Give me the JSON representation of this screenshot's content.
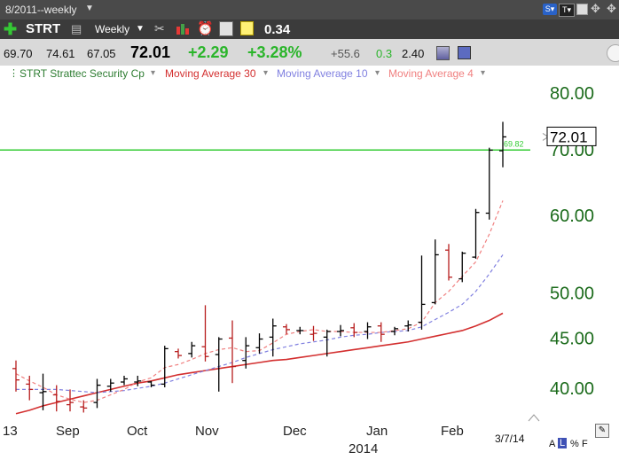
{
  "window": {
    "title": "8/2011--weekly"
  },
  "toolbar": {
    "symbol": "STRT",
    "period": "Weekly",
    "indicator_value": "0.34",
    "icons": [
      "add-symbol-icon",
      "printer-icon",
      "dropdown-arrow-icon",
      "tools-icon",
      "bar-chart-icon",
      "alarm-clock-icon",
      "calculator-icon",
      "note-icon"
    ],
    "right_icons": [
      "s-dropdown-icon",
      "t-dropdown-icon",
      "minimize-icon",
      "move-icon"
    ]
  },
  "quote": {
    "open": "69.70",
    "high": "74.61",
    "low": "67.05",
    "last": "72.01",
    "change": "+2.29",
    "change_pct": "+3.28%",
    "stat1": "+55.6",
    "stat2": "0.3",
    "stat3": "2.40"
  },
  "legend": [
    {
      "label": "STRT Strattec Security Cp",
      "color": "#2e7d32"
    },
    {
      "label": "Moving Average 30",
      "color": "#d32f2f"
    },
    {
      "label": "Moving Average 10",
      "color": "#8080e0"
    },
    {
      "label": "Moving Average 4",
      "color": "#f08080"
    }
  ],
  "footer": {
    "date": "3/7/14",
    "scale_buttons": [
      "A",
      "L",
      "%",
      "F"
    ]
  },
  "chart_data": {
    "type": "ohlc",
    "y_scale": "log",
    "ylim": [
      37.5,
      82
    ],
    "y_ticks": [
      "80.00",
      "70.00",
      "60.00",
      "50.00",
      "45.00",
      "40.00"
    ],
    "y_tick_values": [
      80,
      70,
      60,
      50,
      45,
      40
    ],
    "x_month_labels": [
      "13",
      "Sep",
      "Oct",
      "Nov",
      "Dec",
      "Jan",
      "Feb"
    ],
    "x_year_labels": [
      "2014"
    ],
    "last_price_label": "72.01",
    "last_price": 72.01,
    "horizontal_line": {
      "value": 69.82,
      "label": "69.82",
      "color": "#33cc33"
    },
    "bars": [
      {
        "o": 41.8,
        "h": 42.6,
        "l": 39.6,
        "c": 40.7,
        "up": false
      },
      {
        "o": 40.3,
        "h": 41.1,
        "l": 38.8,
        "c": 39.8,
        "up": false
      },
      {
        "o": 39.5,
        "h": 41.3,
        "l": 37.9,
        "c": 39.6,
        "up": true
      },
      {
        "o": 39.3,
        "h": 40.2,
        "l": 37.8,
        "c": 38.7,
        "up": false
      },
      {
        "o": 38.4,
        "h": 39.8,
        "l": 37.8,
        "c": 38.6,
        "up": false
      },
      {
        "o": 38.2,
        "h": 38.8,
        "l": 37.7,
        "c": 38.1,
        "up": false
      },
      {
        "o": 38.6,
        "h": 40.8,
        "l": 38.1,
        "c": 40.2,
        "up": true
      },
      {
        "o": 40.1,
        "h": 40.8,
        "l": 39.6,
        "c": 40.4,
        "up": true
      },
      {
        "o": 40.5,
        "h": 41.1,
        "l": 40.2,
        "c": 40.8,
        "up": true
      },
      {
        "o": 40.5,
        "h": 41.1,
        "l": 40.1,
        "c": 40.6,
        "up": true
      },
      {
        "o": 40.5,
        "h": 40.6,
        "l": 40.0,
        "c": 40.2,
        "up": true
      },
      {
        "o": 40.3,
        "h": 44.1,
        "l": 40.0,
        "c": 43.8,
        "up": true
      },
      {
        "o": 43.5,
        "h": 43.8,
        "l": 42.8,
        "c": 43.1,
        "up": false
      },
      {
        "o": 43.3,
        "h": 44.5,
        "l": 42.9,
        "c": 44.1,
        "up": true
      },
      {
        "o": 44.0,
        "h": 48.5,
        "l": 42.5,
        "c": 43.0,
        "up": false
      },
      {
        "o": 43.2,
        "h": 45.0,
        "l": 39.6,
        "c": 44.8,
        "up": true
      },
      {
        "o": 44.9,
        "h": 46.8,
        "l": 40.4,
        "c": 42.0,
        "up": false
      },
      {
        "o": 42.6,
        "h": 45.0,
        "l": 41.8,
        "c": 44.1,
        "up": true
      },
      {
        "o": 43.9,
        "h": 45.4,
        "l": 43.3,
        "c": 44.8,
        "up": true
      },
      {
        "o": 45.0,
        "h": 47.0,
        "l": 43.0,
        "c": 46.2,
        "up": true
      },
      {
        "o": 46.1,
        "h": 46.4,
        "l": 45.3,
        "c": 45.8,
        "up": false
      },
      {
        "o": 45.7,
        "h": 46.1,
        "l": 45.3,
        "c": 45.7,
        "up": true
      },
      {
        "o": 45.3,
        "h": 46.2,
        "l": 44.6,
        "c": 45.4,
        "up": false
      },
      {
        "o": 45.0,
        "h": 45.8,
        "l": 43.0,
        "c": 45.6,
        "up": true
      },
      {
        "o": 45.6,
        "h": 46.3,
        "l": 45.1,
        "c": 45.7,
        "up": true
      },
      {
        "o": 46.0,
        "h": 46.5,
        "l": 45.0,
        "c": 45.5,
        "up": false
      },
      {
        "o": 45.6,
        "h": 46.6,
        "l": 44.8,
        "c": 46.1,
        "up": true
      },
      {
        "o": 46.2,
        "h": 46.6,
        "l": 44.5,
        "c": 45.3,
        "up": false
      },
      {
        "o": 45.6,
        "h": 46.1,
        "l": 45.2,
        "c": 45.9,
        "up": true
      },
      {
        "o": 46.2,
        "h": 46.8,
        "l": 45.6,
        "c": 46.3,
        "up": true
      },
      {
        "o": 46.6,
        "h": 54.5,
        "l": 45.8,
        "c": 48.6,
        "up": true
      },
      {
        "o": 48.8,
        "h": 56.6,
        "l": 48.6,
        "c": 54.6,
        "up": true
      },
      {
        "o": 55.2,
        "h": 56.0,
        "l": 51.4,
        "c": 51.8,
        "up": false
      },
      {
        "o": 51.6,
        "h": 55.0,
        "l": 51.2,
        "c": 54.8,
        "up": true
      },
      {
        "o": 54.3,
        "h": 60.8,
        "l": 54.1,
        "c": 60.3,
        "up": true
      },
      {
        "o": 60.2,
        "h": 70.2,
        "l": 59.3,
        "c": 69.8,
        "up": true
      },
      {
        "o": 69.7,
        "h": 74.6,
        "l": 67.05,
        "c": 72.01,
        "up": true
      }
    ],
    "ma30": [
      37.6,
      37.9,
      38.3,
      38.6,
      38.9,
      39.2,
      39.5,
      39.8,
      40.1,
      40.4,
      40.6,
      40.9,
      41.2,
      41.4,
      41.6,
      41.8,
      42.0,
      42.2,
      42.4,
      42.6,
      42.7,
      42.9,
      43.1,
      43.3,
      43.5,
      43.7,
      43.9,
      44.1,
      44.3,
      44.5,
      44.8,
      45.1,
      45.4,
      45.7,
      46.2,
      46.8,
      47.6
    ],
    "ma10": [
      39.8,
      39.8,
      39.8,
      39.8,
      39.7,
      39.6,
      39.5,
      39.6,
      39.7,
      39.9,
      40.1,
      40.4,
      40.8,
      41.2,
      41.6,
      42.0,
      42.4,
      42.9,
      43.3,
      43.7,
      44.0,
      44.3,
      44.5,
      44.7,
      45.0,
      45.2,
      45.3,
      45.5,
      45.6,
      45.7,
      46.1,
      46.9,
      47.7,
      48.6,
      50.1,
      52.2,
      54.6
    ],
    "ma4": [
      41.3,
      40.6,
      40.0,
      39.3,
      38.9,
      38.6,
      38.8,
      39.3,
      39.8,
      40.5,
      40.9,
      41.9,
      42.2,
      42.7,
      43.3,
      43.7,
      43.9,
      43.5,
      43.6,
      44.4,
      45.3,
      45.6,
      45.8,
      45.6,
      45.6,
      45.5,
      45.5,
      45.5,
      45.7,
      45.9,
      46.6,
      48.8,
      50.1,
      51.9,
      53.7,
      57.3,
      62.0
    ],
    "colors": {
      "up": "#000000",
      "down": "#b71c1c",
      "ma30": "#d32f2f",
      "ma10": "#8080e0",
      "ma4": "#f08080",
      "y_tick_text": "#1b6b1b"
    }
  }
}
